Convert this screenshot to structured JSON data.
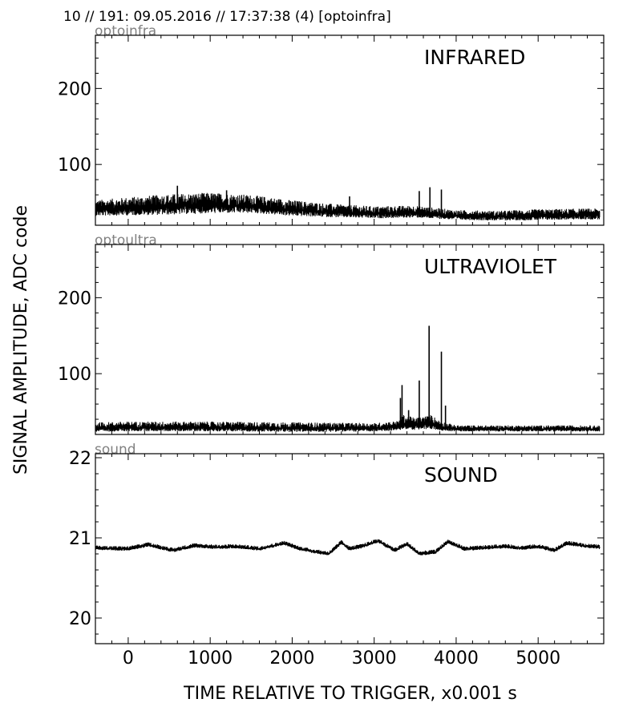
{
  "header": {
    "text": "10 // 191:   09.05.2016 // 17:37:38 (4)  [optoinfra]"
  },
  "ylabel": "SIGNAL AMPLITUDE,  ADC code",
  "xlabel": "TIME RELATIVE TO TRIGGER,   x0.001 s",
  "x_ticks": [
    "0",
    "1000",
    "2000",
    "3000",
    "4000",
    "5000"
  ],
  "chart_data": [
    {
      "type": "line",
      "channel": "optoinfra",
      "title": "INFRARED",
      "xlim": [
        -400,
        5800
      ],
      "ylim": [
        20,
        270
      ],
      "y_ticks": [
        "100",
        "200"
      ],
      "y_tick_values": [
        100,
        200
      ],
      "x": [
        -400,
        0,
        500,
        1000,
        1500,
        2000,
        2500,
        3000,
        3500,
        4000,
        4500,
        5000,
        5500,
        5750
      ],
      "baseline": [
        40,
        42,
        44,
        46,
        45,
        40,
        37,
        35,
        36,
        32,
        31,
        32,
        33,
        33
      ],
      "noise_band": [
        13,
        15,
        17,
        17,
        15,
        13,
        11,
        10,
        10,
        8,
        8,
        9,
        9,
        9
      ],
      "spikes": [
        {
          "x": 600,
          "y": 72
        },
        {
          "x": 1200,
          "y": 66
        },
        {
          "x": 2700,
          "y": 58
        },
        {
          "x": 3550,
          "y": 65
        },
        {
          "x": 3680,
          "y": 70
        },
        {
          "x": 3820,
          "y": 67
        }
      ],
      "grid": false
    },
    {
      "type": "line",
      "channel": "optoultra",
      "title": "ULTRAVIOLET",
      "xlim": [
        -400,
        5800
      ],
      "ylim": [
        20,
        270
      ],
      "y_ticks": [
        "100",
        "200"
      ],
      "y_tick_values": [
        100,
        200
      ],
      "x": [
        -400,
        0,
        1000,
        2000,
        3000,
        3300,
        3350,
        3500,
        3700,
        3800,
        4000,
        5000,
        5750
      ],
      "baseline": [
        28,
        29,
        29,
        28,
        28,
        30,
        34,
        32,
        34,
        30,
        27,
        27,
        27
      ],
      "noise_band": [
        8,
        8,
        8,
        8,
        7,
        8,
        12,
        10,
        12,
        8,
        5,
        5,
        5
      ],
      "spikes": [
        {
          "x": 3320,
          "y": 68
        },
        {
          "x": 3340,
          "y": 85
        },
        {
          "x": 3420,
          "y": 52
        },
        {
          "x": 3550,
          "y": 91
        },
        {
          "x": 3670,
          "y": 163
        },
        {
          "x": 3820,
          "y": 129
        },
        {
          "x": 3870,
          "y": 58
        }
      ],
      "grid": false
    },
    {
      "type": "line",
      "channel": "sound",
      "title": "SOUND",
      "xlim": [
        -400,
        5800
      ],
      "ylim": [
        19.68,
        22.05
      ],
      "y_ticks": [
        "20",
        "21",
        "22"
      ],
      "y_tick_values": [
        20,
        21,
        22
      ],
      "x": [
        -400,
        0,
        250,
        550,
        800,
        1100,
        1300,
        1600,
        1900,
        2100,
        2300,
        2450,
        2600,
        2700,
        2850,
        3050,
        3250,
        3400,
        3550,
        3750,
        3900,
        4100,
        4300,
        4600,
        4800,
        5000,
        5200,
        5350,
        5550,
        5750
      ],
      "y": [
        20.87,
        20.86,
        20.91,
        20.84,
        20.9,
        20.88,
        20.89,
        20.86,
        20.93,
        20.86,
        20.82,
        20.8,
        20.94,
        20.86,
        20.89,
        20.96,
        20.84,
        20.92,
        20.8,
        20.82,
        20.95,
        20.86,
        20.87,
        20.89,
        20.87,
        20.89,
        20.84,
        20.93,
        20.9,
        20.88
      ],
      "noise_band": [
        0.035,
        0.035,
        0.035,
        0.035,
        0.035,
        0.035,
        0.035,
        0.035,
        0.035,
        0.035,
        0.035,
        0.035,
        0.035,
        0.035,
        0.035,
        0.035,
        0.035,
        0.035,
        0.035,
        0.035,
        0.035,
        0.035,
        0.035,
        0.035,
        0.035,
        0.035,
        0.035,
        0.035,
        0.035,
        0.035
      ],
      "grid": false
    }
  ]
}
